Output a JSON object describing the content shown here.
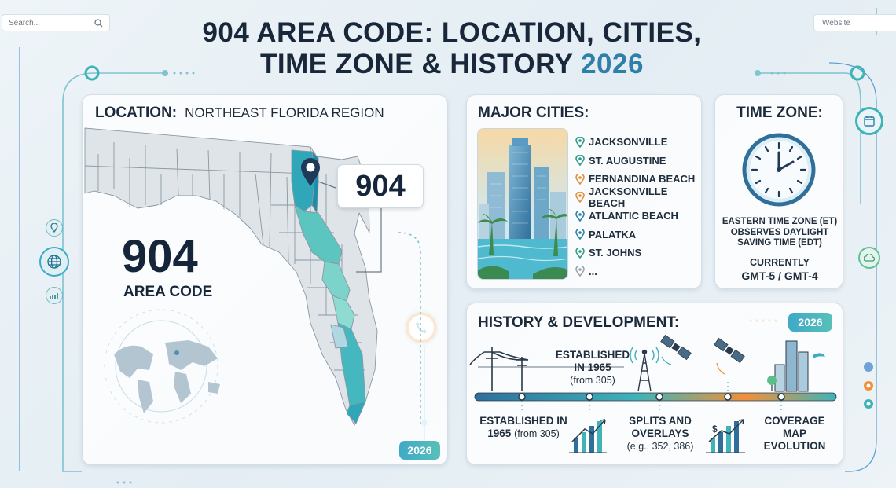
{
  "search": {
    "placeholder": "Search..."
  },
  "website": {
    "label": "Website"
  },
  "title": {
    "line1": "904 AREA CODE: LOCATION, CITIES,",
    "line2": "TIME ZONE & HISTORY",
    "year": "2026"
  },
  "location": {
    "heading": "LOCATION:",
    "region": "NORTHEAST FLORIDA REGION",
    "code": "904",
    "code_label": "AREA CODE",
    "callout": "904",
    "badge": "2026"
  },
  "cities": {
    "heading": "MAJOR CITIES:",
    "items": [
      {
        "name": "Jacksonville",
        "color": "#2e9a87"
      },
      {
        "name": "St. Augustine",
        "color": "#2e9a87"
      },
      {
        "name": "Fernandina Beach",
        "color": "#e0903a"
      },
      {
        "name": "Jacksonville Beach",
        "color": "#e0903a"
      },
      {
        "name": "Atlantic Beach",
        "color": "#2f7fa8"
      },
      {
        "name": "Palatka",
        "color": "#2f7fa8"
      },
      {
        "name": "St. Johns",
        "color": "#2e9a87"
      },
      {
        "name": "...",
        "color": "#9aa5ae"
      }
    ]
  },
  "time_zone": {
    "heading": "TIME ZONE:",
    "line1": "EASTERN TIME ZONE (ET)",
    "line2": "OBSERVES DAYLIGHT",
    "line3": "SAVING TIME (EDT)",
    "currently": "CURRENTLY",
    "gmt": "GMT-5 / GMT-4"
  },
  "history": {
    "heading": "HISTORY & DEVELOPMENT:",
    "badge": "2026",
    "top_label": {
      "line1": "ESTABLISHED",
      "line2": "IN 1965",
      "line3": "(from 305)"
    },
    "milestones": [
      {
        "line1": "ESTABLISHED IN",
        "line2": "1965",
        "line3": "(from 305)"
      },
      {
        "line1": "SPLITS AND",
        "line2": "OVERLAYS",
        "line3": "(e.g., 352, 386)"
      },
      {
        "line1": "COVERAGE",
        "line2": "MAP",
        "line3": "EVOLUTION"
      }
    ]
  },
  "colors": {
    "accent_teal": "#3fb3b8",
    "accent_blue": "#2f7fa8",
    "accent_orange": "#f0913a",
    "dark_text": "#18283a"
  },
  "icons": [
    "search-icon",
    "location-pin-icon",
    "globe-icon",
    "chart-icon",
    "phone-icon",
    "calendar-icon",
    "cloud-icon",
    "clock-icon",
    "utility-pole-icon",
    "cell-tower-icon",
    "satellite-icon",
    "bar-growth-icon"
  ]
}
